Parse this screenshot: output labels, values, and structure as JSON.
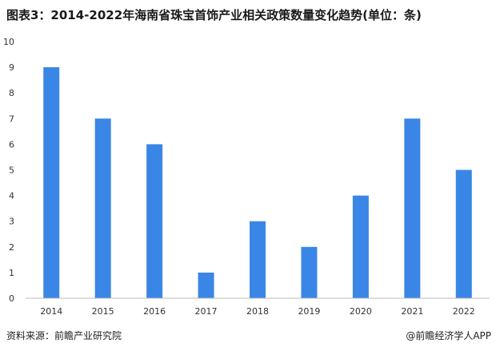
{
  "title": "图表3：2014-2022年海南省珠宝首饰产业相关政策数量变化趋势(单位：条)",
  "source": "资料来源：前瞻产业研究院",
  "brand": "@前瞻经济学人APP",
  "chart_data": {
    "type": "bar",
    "title": "图表3：2014-2022年海南省珠宝首饰产业相关政策数量变化趋势(单位：条)",
    "categories": [
      "2014",
      "2015",
      "2016",
      "2017",
      "2018",
      "2019",
      "2020",
      "2021",
      "2022"
    ],
    "values": [
      9,
      7,
      6,
      1,
      3,
      2,
      4,
      7,
      5
    ],
    "xlabel": "",
    "ylabel": "",
    "ylim": [
      0,
      10
    ],
    "yticks": [
      0,
      1,
      2,
      3,
      4,
      5,
      6,
      7,
      8,
      9,
      10
    ],
    "grid": false,
    "bar_color": "#3a86e6"
  }
}
